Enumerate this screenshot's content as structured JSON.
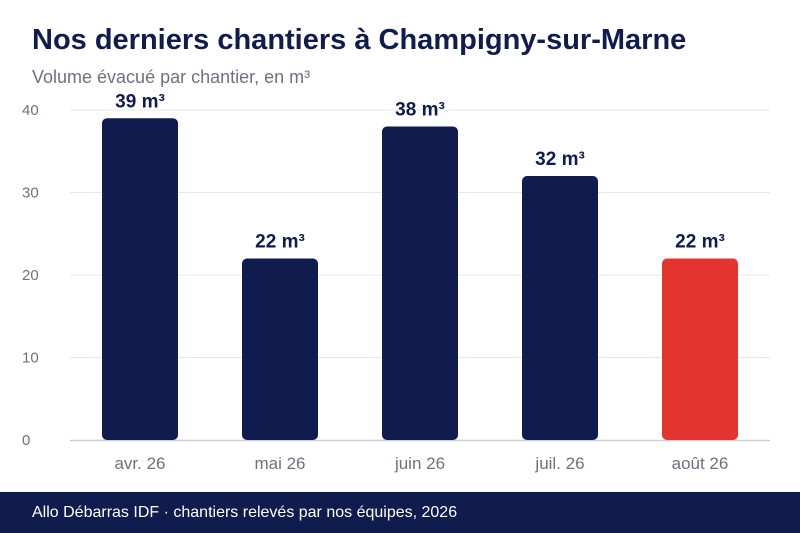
{
  "chart_data": {
    "type": "bar",
    "title": "Nos derniers chantiers à Champigny-sur-Marne",
    "subtitle": "Volume évacué par chantier, en m³",
    "xlabel": "",
    "ylabel": "",
    "categories": [
      "avr. 26",
      "mai 26",
      "juin 26",
      "juil. 26",
      "août 26"
    ],
    "values": [
      39,
      22,
      38,
      32,
      22
    ],
    "value_labels": [
      "39 m³",
      "22 m³",
      "38 m³",
      "32 m³",
      "22 m³"
    ],
    "highlighted_index": 4,
    "ylim": [
      0,
      40
    ],
    "yticks": [
      0,
      10,
      20,
      30,
      40
    ],
    "grid": true,
    "legend": "none",
    "colors": {
      "bar": "#0f1c4d",
      "highlight": "#e3342f",
      "grid": "#e5e7eb",
      "axis": "#c9cdd8",
      "tick_text": "#6b7280",
      "label_text": "#0f1c4d"
    }
  },
  "footer": {
    "source": "Allo Débarras IDF · chantiers relevés par nos équipes, 2026"
  }
}
